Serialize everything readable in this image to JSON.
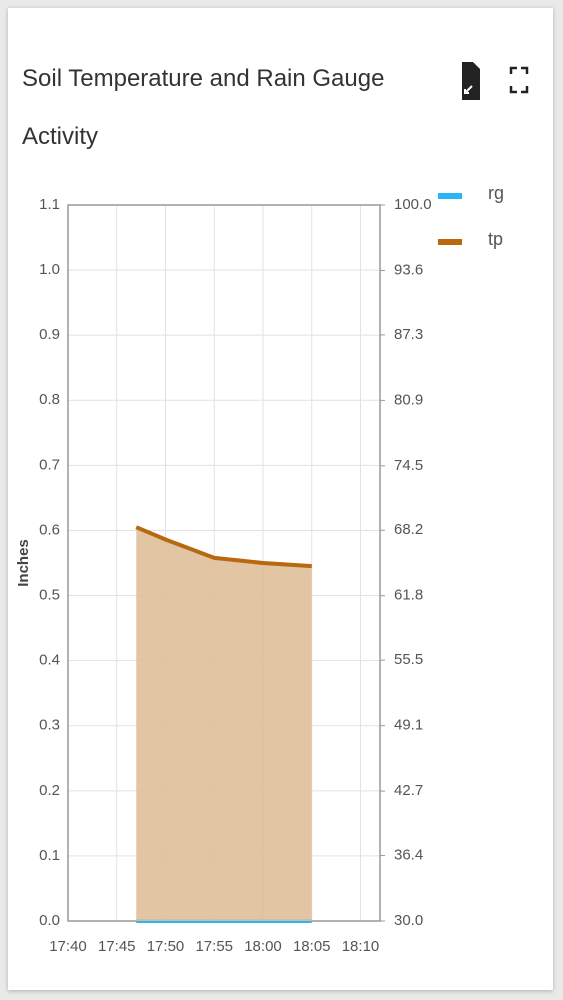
{
  "chart_data": {
    "type": "area",
    "title": "Soil Temperature and Rain Gauge Activity",
    "y_label": "Inches",
    "x": [
      "17:47",
      "17:50",
      "17:55",
      "18:00",
      "18:05"
    ],
    "xlim": [
      "17:40",
      "18:12"
    ],
    "xticks": [
      "17:40",
      "17:45",
      "17:50",
      "17:55",
      "18:00",
      "18:05",
      "18:10"
    ],
    "ylim": [
      0,
      1.1
    ],
    "yticks": [
      {
        "value": 0,
        "label": "0.0"
      },
      0.1,
      0.2,
      0.3,
      0.4,
      0.5,
      0.6,
      0.7,
      0.8,
      0.9,
      {
        "value": 1,
        "label": "1.0"
      },
      1.1
    ],
    "y2lim": [
      30,
      100
    ],
    "y2ticks": [
      {
        "value": 30,
        "label": "30.0"
      },
      36.4,
      42.7,
      49.1,
      55.5,
      61.8,
      68.2,
      74.5,
      80.9,
      87.3,
      93.6,
      {
        "value": 100,
        "label": "100.0"
      }
    ],
    "grid": true,
    "legend": "right",
    "series": [
      {
        "name": "rg",
        "color": "#29b6f6",
        "values": [
          0,
          0,
          0,
          0,
          0
        ]
      },
      {
        "name": "tp",
        "color": "#b8680e",
        "fill": "#dfbf98",
        "axis": "y2",
        "values": [
          68.5,
          67.3,
          65.5,
          65.0,
          64.7
        ]
      }
    ]
  }
}
